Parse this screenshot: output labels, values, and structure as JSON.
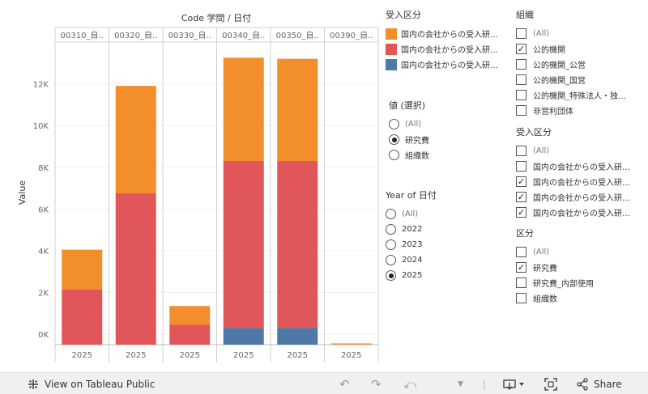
{
  "chart_data": {
    "type": "bar",
    "stacked": true,
    "column_header": "Code 学問 / 日付",
    "ylabel": "Value",
    "ylim": [
      -500,
      14000
    ],
    "yticks": [
      "0K",
      "2K",
      "4K",
      "6K",
      "8K",
      "10K",
      "12K"
    ],
    "ytick_values": [
      0,
      2000,
      4000,
      6000,
      8000,
      10000,
      12000
    ],
    "panels": [
      "00310_自..",
      "00320_自..",
      "00330_自..",
      "00340_自..",
      "00350_自..",
      "00390_自.."
    ],
    "categories": [
      "2025",
      "2025",
      "2025",
      "2025",
      "2025",
      "2025"
    ],
    "series": [
      {
        "color": "#4e79a7",
        "values": [
          -500,
          -500,
          -500,
          300,
          300,
          -500
        ]
      },
      {
        "color": "#e15759",
        "values": [
          2650,
          7250,
          950,
          8000,
          8000,
          0
        ]
      },
      {
        "color": "#f28e2b",
        "values": [
          1900,
          5150,
          900,
          4950,
          4900,
          60
        ]
      }
    ]
  },
  "legend_color": {
    "title": "受入区分",
    "items": [
      {
        "label": "国内の会社からの受入研…",
        "color": "#f28e2b"
      },
      {
        "label": "国内の会社からの受入研…",
        "color": "#e15759"
      },
      {
        "label": "国内の会社からの受入研…",
        "color": "#4e79a7"
      }
    ]
  },
  "filter_value": {
    "title": "値 (選択)",
    "options": [
      {
        "label": "(All)",
        "selected": false
      },
      {
        "label": "研究費",
        "selected": true
      },
      {
        "label": "組織数",
        "selected": false
      }
    ]
  },
  "filter_year": {
    "title": "Year of 日付",
    "options": [
      {
        "label": "(All)",
        "selected": false
      },
      {
        "label": "2022",
        "selected": false
      },
      {
        "label": "2023",
        "selected": false
      },
      {
        "label": "2024",
        "selected": false
      },
      {
        "label": "2025",
        "selected": true
      }
    ]
  },
  "filter_org": {
    "title": "組織",
    "options": [
      {
        "label": "(All)",
        "checked": false
      },
      {
        "label": "公的機関",
        "checked": true
      },
      {
        "label": "公的機関_公営",
        "checked": false
      },
      {
        "label": "公的機関_国営",
        "checked": false
      },
      {
        "label": "公的機関_特殊法人・独…",
        "checked": false
      },
      {
        "label": "非営利団体",
        "checked": false
      }
    ]
  },
  "filter_ukeire": {
    "title": "受入区分",
    "options": [
      {
        "label": "(All)",
        "checked": false
      },
      {
        "label": "国内の会社からの受入研…",
        "checked": false
      },
      {
        "label": "国内の会社からの受入研…",
        "checked": true
      },
      {
        "label": "国内の会社からの受入研…",
        "checked": true
      },
      {
        "label": "国内の会社からの受入研…",
        "checked": true
      }
    ]
  },
  "filter_kubun": {
    "title": "区分",
    "options": [
      {
        "label": "(All)",
        "checked": false
      },
      {
        "label": "研究費",
        "checked": true
      },
      {
        "label": "研究費_内部使用",
        "checked": false
      },
      {
        "label": "組織数",
        "checked": false
      }
    ]
  },
  "toolbar": {
    "view_label": "View on Tableau Public",
    "share_label": "Share"
  }
}
